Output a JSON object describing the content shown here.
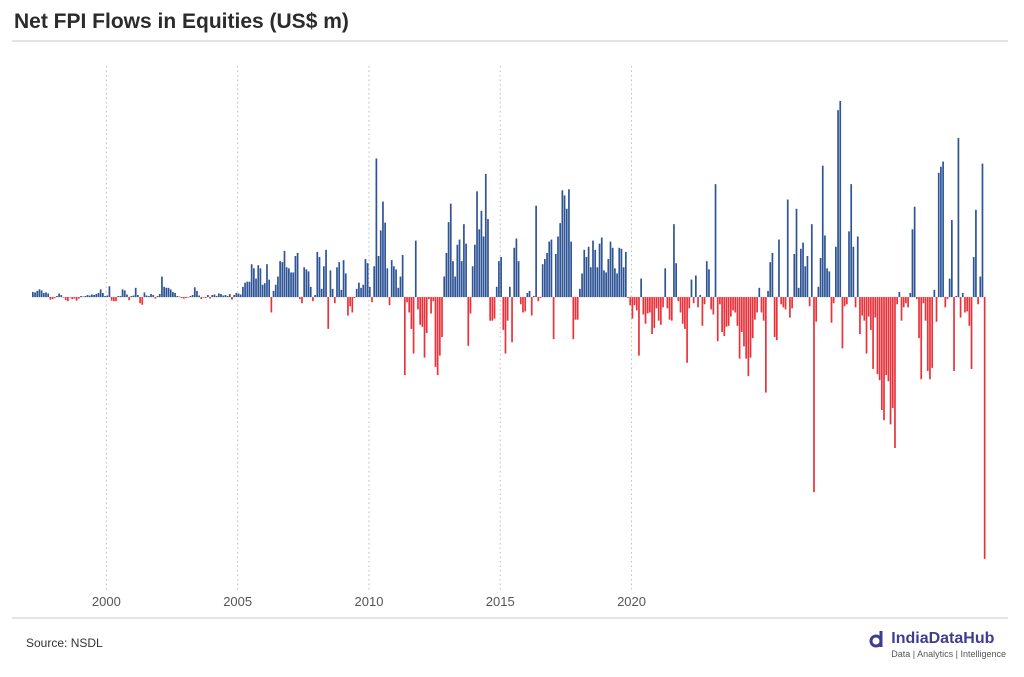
{
  "title": "Net FPI Flows in Equities (US$ m)",
  "source": "Source: NSDL",
  "brand": {
    "name": "IndiaDataHub",
    "tagline": "Data | Analytics | Intelligence",
    "color": "#3f3d8f"
  },
  "colors": {
    "positive": "#2f5597",
    "negative": "#e8333c",
    "gridline": "#bfbfbf"
  },
  "chart_data": {
    "type": "bar",
    "x_start": "1997-03",
    "frequency": "monthly",
    "xticks": [
      "2000",
      "2005",
      "2010",
      "2015",
      "2020"
    ],
    "grid": "vertical dotted at x ticks",
    "legend": "none",
    "ylim": [
      -5200,
      3800
    ],
    "values": [
      100,
      90,
      120,
      150,
      130,
      80,
      90,
      70,
      -50,
      -40,
      -20,
      20,
      70,
      40,
      0,
      -60,
      -80,
      0,
      -40,
      -30,
      -70,
      -30,
      20,
      10,
      20,
      40,
      30,
      50,
      40,
      60,
      80,
      150,
      80,
      20,
      30,
      210,
      -70,
      -80,
      -80,
      20,
      20,
      150,
      130,
      50,
      -60,
      20,
      30,
      180,
      40,
      -120,
      -150,
      90,
      30,
      20,
      60,
      40,
      -30,
      20,
      60,
      400,
      200,
      180,
      180,
      150,
      100,
      80,
      20,
      10,
      -20,
      -30,
      -20,
      -10,
      20,
      40,
      190,
      120,
      30,
      -40,
      -10,
      -20,
      40,
      -30,
      40,
      50,
      20,
      70,
      60,
      30,
      40,
      20,
      60,
      -50,
      40,
      80,
      70,
      50,
      200,
      280,
      300,
      300,
      640,
      560,
      360,
      620,
      560,
      240,
      270,
      640,
      340,
      -300,
      120,
      240,
      400,
      700,
      680,
      900,
      580,
      560,
      480,
      480,
      800,
      860,
      -40,
      -120,
      580,
      540,
      500,
      200,
      -80,
      40,
      880,
      780,
      160,
      600,
      920,
      -620,
      520,
      160,
      -120,
      580,
      680,
      140,
      720,
      460,
      -360,
      -180,
      -300,
      -20,
      160,
      280,
      180,
      240,
      740,
      660,
      200,
      -100,
      600,
      2700,
      800,
      1300,
      1860,
      1450,
      560,
      -160,
      720,
      600,
      540,
      180,
      400,
      820,
      -1520,
      -100,
      -300,
      -620,
      -1100,
      1100,
      -240,
      -540,
      -580,
      -1180,
      -700,
      -40,
      -320,
      -80,
      -1360,
      -1520,
      -1140,
      -780,
      400,
      860,
      1460,
      1820,
      700,
      400,
      1020,
      1120,
      700,
      1420,
      1040,
      -950,
      -320,
      600,
      1020,
      2060,
      1320,
      1680,
      1180,
      2400,
      1520,
      -460,
      -460,
      -420,
      200,
      700,
      780,
      -640,
      -1100,
      -460,
      200,
      -880,
      960,
      1140,
      700,
      -140,
      -300,
      -280,
      80,
      120,
      -360,
      20,
      1780,
      -80,
      -20,
      640,
      740,
      860,
      1080,
      1120,
      -820,
      840,
      1180,
      1440,
      2080,
      1980,
      1720,
      2100,
      1080,
      -820,
      -440,
      -440,
      160,
      460,
      920,
      780,
      980,
      580,
      1100,
      920,
      580,
      1040,
      1160,
      520,
      480,
      740,
      1080,
      960,
      560,
      460,
      960,
      940,
      580,
      880,
      -20,
      -160,
      -420,
      -160,
      -260,
      -1140,
      360,
      -340,
      -520,
      -320,
      -300,
      -720,
      -600,
      -220,
      -460,
      -540,
      -200,
      560,
      -220,
      -440,
      -460,
      1420,
      660,
      -80,
      -300,
      -520,
      -620,
      -1280,
      -220,
      340,
      -120,
      420,
      -200,
      40,
      -560,
      -140,
      700,
      540,
      -240,
      -340,
      2200,
      -860,
      -140,
      -680,
      -760,
      -580,
      -560,
      -380,
      -260,
      -300,
      -560,
      -1200,
      -680,
      -960,
      -1200,
      -1540,
      -1180,
      -800,
      -440,
      -300,
      180,
      -300,
      -460,
      -1860,
      120,
      680,
      860,
      -780,
      -840,
      1120,
      -140,
      -200,
      -240,
      1900,
      -400,
      -220,
      840,
      1720,
      180,
      940,
      1060,
      600,
      800,
      -180,
      1420,
      -3800,
      -480,
      200,
      760,
      2560,
      1200,
      560,
      500,
      -500,
      -120,
      980,
      3640,
      3820,
      -1000,
      -180,
      -140,
      1280,
      2200,
      980,
      -200,
      1180,
      -720,
      -360,
      -460,
      -1100,
      -380,
      -640,
      -1400,
      -400,
      -1500,
      -1620,
      -2200,
      -2400,
      -1520,
      -1640,
      -2480,
      -2160,
      -2940,
      -140,
      100,
      -460,
      -200,
      -120,
      -200,
      80,
      1320,
      1760,
      -40,
      -800,
      -1600,
      -120,
      -460,
      -1440,
      -1600,
      -1380,
      140,
      -480,
      2420,
      2540,
      2640,
      -200,
      -40,
      360,
      1500,
      -1440,
      20,
      3100,
      -400,
      80,
      -300,
      -280,
      -560,
      -1400,
      780,
      1700,
      -140,
      400,
      2600,
      -5100
    ]
  }
}
